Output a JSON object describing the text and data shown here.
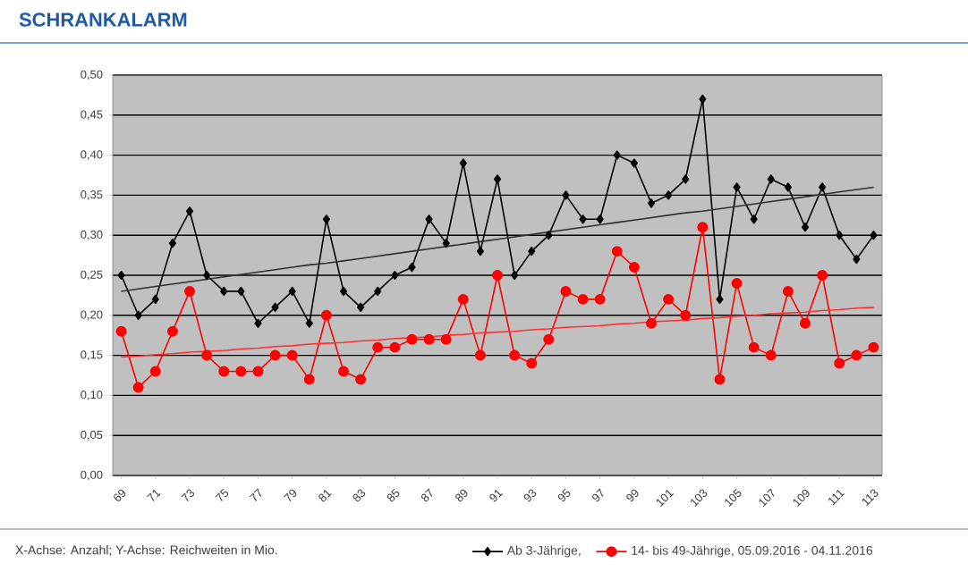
{
  "chart_data": {
    "type": "line",
    "title": "SCHRANKALARM",
    "annotations": [
      "X-Achse: Anzahl; Y-Achse: Reichweiten in Mio."
    ],
    "x": [
      69,
      70,
      71,
      72,
      73,
      74,
      75,
      76,
      77,
      78,
      79,
      80,
      81,
      82,
      83,
      84,
      85,
      86,
      87,
      88,
      89,
      90,
      91,
      92,
      93,
      94,
      95,
      96,
      97,
      98,
      99,
      100,
      101,
      102,
      103,
      104,
      105,
      106,
      107,
      108,
      109,
      110,
      111,
      112,
      113
    ],
    "series": [
      {
        "name": "Ab 3-Jährige,",
        "color": "#000000",
        "marker": "diamond",
        "values": [
          0.25,
          0.2,
          0.22,
          0.29,
          0.33,
          0.25,
          0.23,
          0.23,
          0.19,
          0.21,
          0.23,
          0.19,
          0.32,
          0.23,
          0.21,
          0.23,
          0.25,
          0.26,
          0.32,
          0.29,
          0.39,
          0.28,
          0.37,
          0.25,
          0.28,
          0.3,
          0.35,
          0.32,
          0.32,
          0.4,
          0.39,
          0.34,
          0.35,
          0.37,
          0.47,
          0.22,
          0.36,
          0.32,
          0.37,
          0.36,
          0.31,
          0.36,
          0.3,
          0.27,
          0.3
        ]
      },
      {
        "name": "14- bis 49-Jährige, 05.09.2016 - 04.11.2016",
        "color": "#ff0000",
        "marker": "circle",
        "values": [
          0.18,
          0.11,
          0.13,
          0.18,
          0.23,
          0.15,
          0.13,
          0.13,
          0.13,
          0.15,
          0.15,
          0.12,
          0.2,
          0.13,
          0.12,
          0.16,
          0.16,
          0.17,
          0.17,
          0.17,
          0.22,
          0.15,
          0.25,
          0.15,
          0.14,
          0.17,
          0.23,
          0.22,
          0.22,
          0.28,
          0.26,
          0.19,
          0.22,
          0.2,
          0.31,
          0.12,
          0.24,
          0.16,
          0.15,
          0.23,
          0.19,
          0.25,
          0.14,
          0.15,
          0.16
        ]
      },
      {
        "type": "line",
        "color": "#303030",
        "marker": "none",
        "values": [
          0.23,
          0.233,
          0.236,
          0.239,
          0.242,
          0.245,
          0.248,
          0.251,
          0.254,
          0.257,
          0.26,
          0.263,
          0.265,
          0.268,
          0.271,
          0.274,
          0.277,
          0.28,
          0.283,
          0.286,
          0.289,
          0.292,
          0.295,
          0.298,
          0.301,
          0.304,
          0.307,
          0.31,
          0.313,
          0.316,
          0.319,
          0.322,
          0.325,
          0.328,
          0.33,
          0.333,
          0.336,
          0.339,
          0.342,
          0.345,
          0.348,
          0.351,
          0.354,
          0.357,
          0.36
        ]
      },
      {
        "type": "line",
        "color": "#ff3030",
        "marker": "none",
        "values": [
          0.148,
          0.149,
          0.151,
          0.152,
          0.154,
          0.155,
          0.156,
          0.158,
          0.159,
          0.161,
          0.162,
          0.164,
          0.165,
          0.166,
          0.168,
          0.169,
          0.171,
          0.172,
          0.173,
          0.175,
          0.176,
          0.178,
          0.179,
          0.18,
          0.182,
          0.183,
          0.185,
          0.186,
          0.187,
          0.189,
          0.19,
          0.192,
          0.193,
          0.194,
          0.196,
          0.197,
          0.199,
          0.2,
          0.202,
          0.203,
          0.204,
          0.206,
          0.207,
          0.209,
          0.21
        ]
      }
    ],
    "xlim": [
      68.5,
      113.5
    ],
    "xticks": [
      69,
      71,
      73,
      75,
      77,
      79,
      81,
      83,
      85,
      87,
      89,
      91,
      93,
      95,
      97,
      99,
      101,
      103,
      105,
      107,
      109,
      111,
      113
    ],
    "ylim": [
      0,
      0.5
    ],
    "yticks": [
      {
        "value": 0,
        "label": "0,00"
      },
      {
        "value": 0.05,
        "label": "0,05"
      },
      {
        "value": 0.1,
        "label": "0,10"
      },
      {
        "value": 0.15,
        "label": "0,15"
      },
      {
        "value": 0.2,
        "label": "0,20"
      },
      {
        "value": 0.25,
        "label": "0,25"
      },
      {
        "value": 0.3,
        "label": "0,30"
      },
      {
        "value": 0.35,
        "label": "0,35"
      },
      {
        "value": 0.4,
        "label": "0,40"
      },
      {
        "value": 0.45,
        "label": "0,45"
      },
      {
        "value": 0.5,
        "label": "0,50"
      }
    ],
    "grid": "y",
    "legend": "bottom",
    "line_style": "solid"
  }
}
